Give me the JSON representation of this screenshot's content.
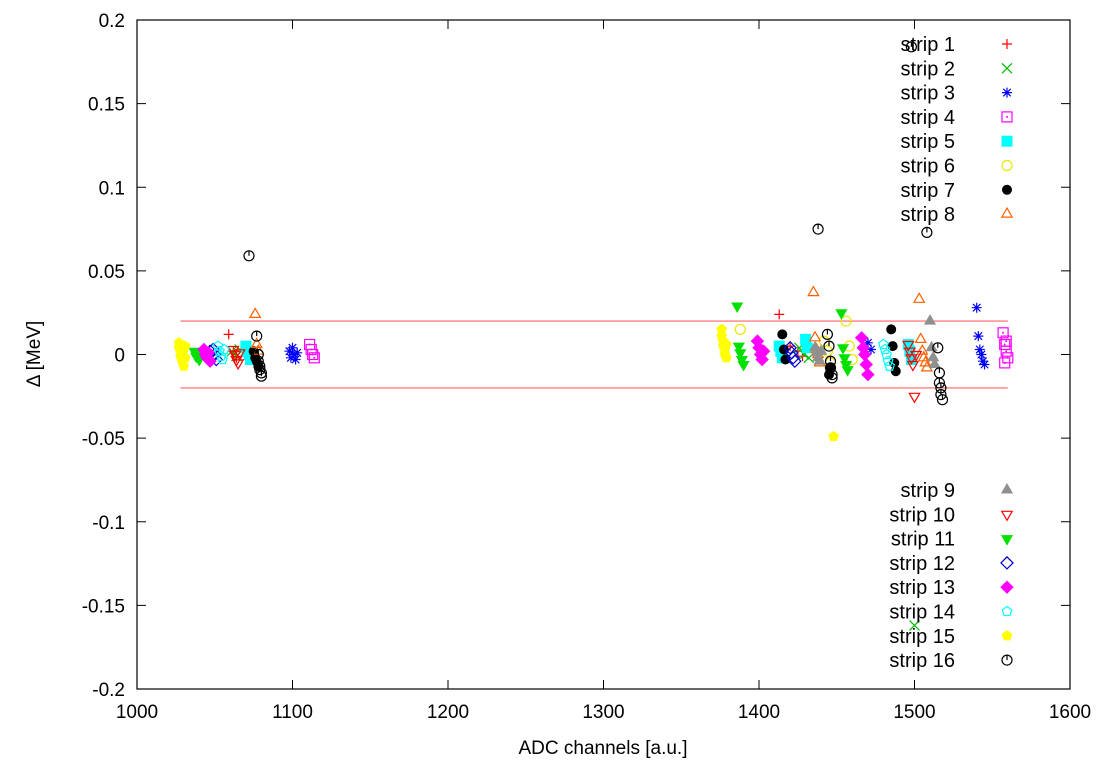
{
  "chart_data": {
    "type": "scatter",
    "title": "",
    "xlabel": "ADC channels [a.u.]",
    "ylabel": "Δ [MeV]",
    "xlim": [
      1000,
      1600
    ],
    "ylim": [
      -0.2,
      0.2
    ],
    "xticks": [
      1000,
      1100,
      1200,
      1300,
      1400,
      1500,
      1600
    ],
    "yticks": [
      -0.2,
      -0.15,
      -0.1,
      -0.05,
      0,
      0.05,
      0.1,
      0.15,
      0.2
    ],
    "ytick_labels": [
      "-0.2",
      "-0.15",
      "-0.1",
      "-0.05",
      "0",
      "0.05",
      "0.1",
      "0.15",
      "0.2"
    ],
    "grid": false,
    "legend_position": "top-right and bottom-right",
    "reference_lines": [
      {
        "y": 0.02,
        "x_range": [
          1028,
          1560
        ],
        "color": "#ff6060"
      },
      {
        "y": -0.02,
        "x_range": [
          1028,
          1560
        ],
        "color": "#ff6060"
      }
    ],
    "series": [
      {
        "name": "strip 1",
        "marker": "plus",
        "color": "#ff0000",
        "x": [
          1059,
          1062,
          1064,
          1413,
          1420,
          1425,
          1428
        ],
        "y": [
          0.012,
          0.002,
          -0.002,
          0.024,
          0.005,
          0.002,
          -0.001
        ]
      },
      {
        "name": "strip 2",
        "marker": "cross",
        "color": "#00c000",
        "x": [
          1061,
          1064,
          1066,
          1426,
          1429,
          1432,
          1500
        ],
        "y": [
          0.002,
          -0.001,
          0.003,
          0.004,
          0.0,
          -0.002,
          -0.162
        ]
      },
      {
        "name": "strip 3",
        "marker": "star",
        "color": "#0000ff",
        "x": [
          1098,
          1099,
          1100,
          1101,
          1102,
          1103,
          1470,
          1472,
          1540,
          1541,
          1542,
          1543,
          1544,
          1545
        ],
        "y": [
          0.002,
          -0.002,
          0.004,
          0.0,
          -0.003,
          0.001,
          0.007,
          0.003,
          0.028,
          0.011,
          0.003,
          0.0,
          -0.004,
          -0.006
        ]
      },
      {
        "name": "strip 4",
        "marker": "square-dot",
        "color": "#ff00ff",
        "x": [
          1111,
          1112,
          1113,
          1114,
          1557,
          1558,
          1559,
          1560,
          1558,
          1559
        ],
        "y": [
          0.006,
          0.003,
          0.0,
          -0.002,
          0.013,
          0.006,
          0.002,
          -0.002,
          -0.005,
          0.008
        ]
      },
      {
        "name": "strip 5",
        "marker": "filled-square",
        "color": "#00ffff",
        "x": [
          1070,
          1071,
          1072,
          1073,
          1413,
          1414,
          1415,
          1430,
          1431,
          1496,
          1497,
          1498
        ],
        "y": [
          0.005,
          0.002,
          0.0,
          -0.003,
          0.005,
          0.002,
          -0.002,
          0.009,
          0.004,
          0.006,
          0.002,
          -0.003
        ]
      },
      {
        "name": "strip 6",
        "marker": "circle",
        "color": "#e8e800",
        "x": [
          1388,
          1442,
          1444,
          1446,
          1456,
          1458,
          1460
        ],
        "y": [
          0.015,
          0.008,
          0.002,
          -0.005,
          0.02,
          0.005,
          -0.003
        ]
      },
      {
        "name": "strip 7",
        "marker": "filled-circle",
        "color": "#000000",
        "x": [
          1075,
          1076,
          1077,
          1078,
          1415,
          1416,
          1417,
          1445,
          1446,
          1485,
          1486,
          1487,
          1488
        ],
        "y": [
          0.002,
          -0.002,
          -0.004,
          -0.007,
          0.012,
          0.003,
          -0.003,
          -0.012,
          -0.008,
          0.015,
          0.005,
          -0.005,
          -0.01
        ]
      },
      {
        "name": "strip 8",
        "marker": "triangle-up",
        "color": "#ff6000",
        "x": [
          1076,
          1077,
          1078,
          1435,
          1436,
          1437,
          1438,
          1439,
          1503,
          1504,
          1505,
          1506,
          1507,
          1508
        ],
        "y": [
          0.024,
          0.006,
          0.002,
          0.037,
          0.01,
          0.003,
          0.0,
          -0.005,
          0.033,
          0.009,
          0.002,
          -0.002,
          -0.005,
          -0.008
        ]
      },
      {
        "name": "strip 9",
        "marker": "filled-triangle-up",
        "color": "#909090",
        "x": [
          1436,
          1437,
          1438,
          1439,
          1440,
          1510,
          1511,
          1512,
          1513
        ],
        "y": [
          0.004,
          0.001,
          -0.002,
          -0.004,
          0.002,
          0.02,
          0.004,
          -0.002,
          -0.006
        ]
      },
      {
        "name": "strip 10",
        "marker": "triangle-down",
        "color": "#ff0000",
        "x": [
          1062,
          1063,
          1064,
          1065,
          1066,
          1496,
          1497,
          1498,
          1499,
          1500,
          1501
        ],
        "y": [
          0.003,
          0.0,
          -0.003,
          -0.005,
          0.001,
          0.006,
          0.002,
          -0.002,
          -0.006,
          -0.025,
          0.0
        ]
      },
      {
        "name": "strip 11",
        "marker": "filled-triangle-down",
        "color": "#00e000",
        "x": [
          1037,
          1038,
          1039,
          1040,
          1041,
          1386,
          1387,
          1388,
          1389,
          1390,
          1453,
          1454,
          1455,
          1456,
          1457
        ],
        "y": [
          0.002,
          -0.001,
          0.001,
          -0.003,
          0.0,
          0.029,
          0.005,
          0.001,
          -0.003,
          -0.006,
          0.025,
          0.004,
          -0.002,
          -0.006,
          -0.009
        ]
      },
      {
        "name": "strip 12",
        "marker": "diamond",
        "color": "#0000d0",
        "x": [
          1047,
          1048,
          1049,
          1050,
          1051,
          1420,
          1421,
          1422,
          1423
        ],
        "y": [
          0.002,
          -0.001,
          0.003,
          0.0,
          -0.003,
          0.004,
          0.001,
          -0.002,
          -0.004
        ]
      },
      {
        "name": "strip 13",
        "marker": "filled-diamond",
        "color": "#ff00ff",
        "x": [
          1043,
          1044,
          1045,
          1046,
          1047,
          1399,
          1400,
          1401,
          1402,
          1403,
          1466,
          1467,
          1468,
          1469,
          1470
        ],
        "y": [
          0.003,
          0.0,
          -0.002,
          0.001,
          -0.004,
          0.008,
          0.004,
          0.0,
          -0.003,
          0.002,
          0.01,
          0.004,
          0.0,
          -0.006,
          -0.012
        ]
      },
      {
        "name": "strip 14",
        "marker": "pentagon",
        "color": "#00ffff",
        "x": [
          1052,
          1053,
          1054,
          1055,
          1056,
          1480,
          1481,
          1482,
          1483,
          1484
        ],
        "y": [
          0.005,
          0.002,
          -0.001,
          -0.003,
          0.003,
          0.006,
          0.003,
          0.0,
          -0.004,
          -0.007
        ]
      },
      {
        "name": "strip 15",
        "marker": "filled-pentagon",
        "color": "#ffff00",
        "x": [
          1027,
          1027,
          1028,
          1028,
          1029,
          1029,
          1030,
          1030,
          1031,
          1031,
          1376,
          1376,
          1377,
          1377,
          1378,
          1378,
          1379,
          1379,
          1448
        ],
        "y": [
          0.007,
          0.004,
          0.002,
          -0.001,
          0.0,
          -0.004,
          0.003,
          -0.007,
          -0.002,
          0.005,
          0.015,
          0.011,
          0.008,
          0.005,
          0.003,
          0.0,
          -0.002,
          0.006,
          -0.049
        ]
      },
      {
        "name": "strip 16",
        "marker": "circle-dot",
        "color": "#000000",
        "x": [
          1072,
          1077,
          1078,
          1078,
          1079,
          1079,
          1080,
          1080,
          1438,
          1444,
          1445,
          1446,
          1446,
          1447,
          1447,
          1498,
          1508,
          1515,
          1516,
          1516,
          1517,
          1517,
          1518
        ],
        "y": [
          0.059,
          0.011,
          0.0,
          -0.004,
          -0.007,
          -0.009,
          -0.011,
          -0.013,
          0.075,
          0.012,
          0.005,
          -0.004,
          -0.008,
          -0.012,
          -0.014,
          0.184,
          0.073,
          0.004,
          -0.011,
          -0.017,
          -0.02,
          -0.024,
          -0.027
        ]
      }
    ]
  }
}
